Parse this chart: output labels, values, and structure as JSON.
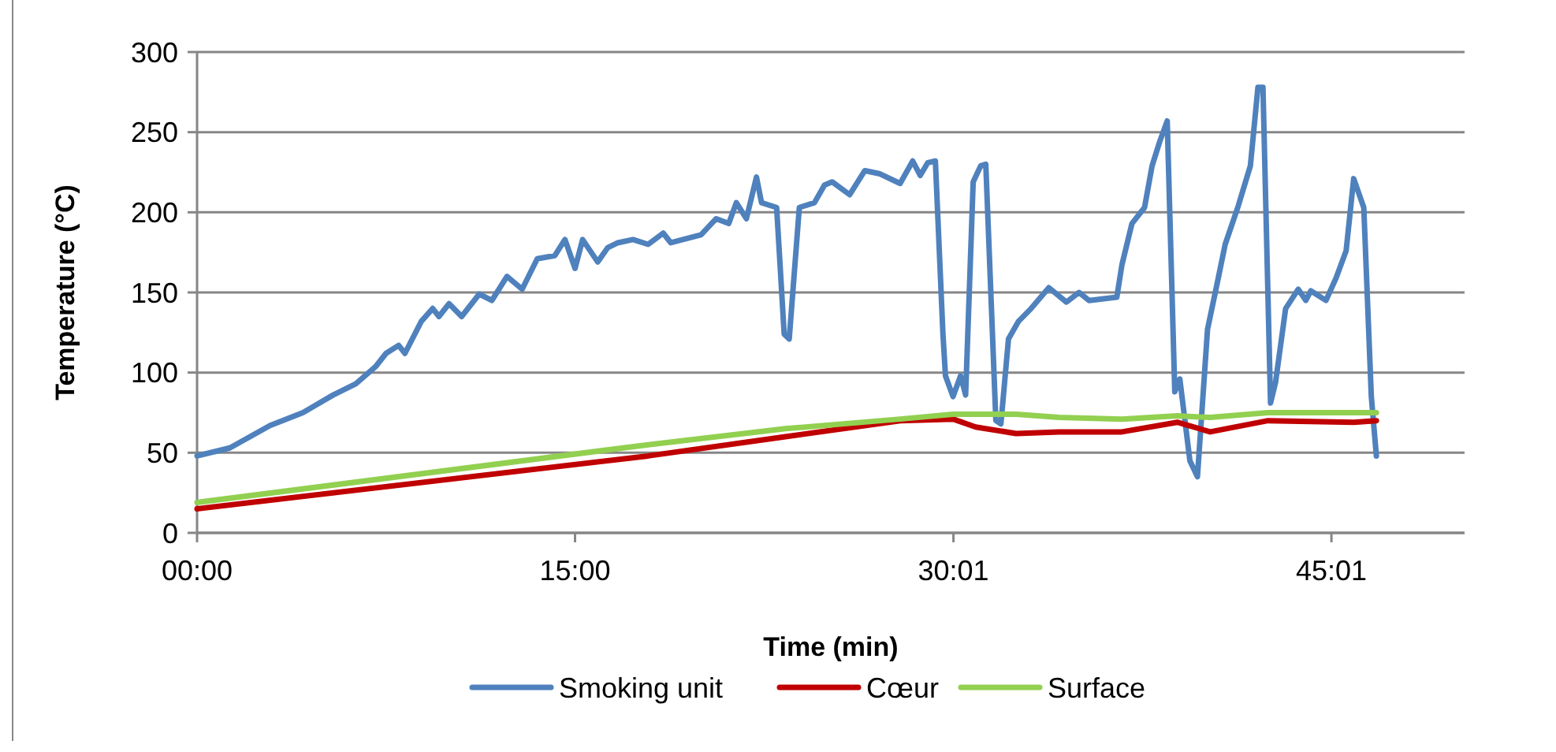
{
  "chart_data": {
    "type": "line",
    "xlabel": "Time (min)",
    "ylabel": "Temperature (°C)",
    "xlim": [
      0,
      50.3
    ],
    "xticks": [
      {
        "value": 0,
        "label": "00:00"
      },
      {
        "value": 15,
        "label": "15:00"
      },
      {
        "value": 30.0167,
        "label": "30:01"
      },
      {
        "value": 45.0167,
        "label": "45:01"
      }
    ],
    "ylim": [
      0,
      300
    ],
    "yticks": [
      0,
      50,
      100,
      150,
      200,
      250,
      300
    ],
    "grid": "y",
    "legend": "bottom",
    "line_style": "solid",
    "marker": "none",
    "series": [
      {
        "name": "Smoking unit",
        "color": "#4f81bd",
        "x": [
          0,
          1.3,
          2.9,
          4.2,
          5.4,
          6.3,
          7.1,
          7.5,
          8.0,
          8.25,
          8.9,
          9.35,
          9.6,
          10.0,
          10.5,
          11.2,
          11.7,
          12.3,
          12.9,
          13.5,
          14.2,
          14.6,
          15.0,
          15.3,
          15.9,
          16.3,
          16.7,
          17.3,
          17.9,
          18.5,
          18.8,
          20.0,
          20.6,
          21.1,
          21.4,
          21.8,
          22.2,
          22.4,
          23.0,
          23.3,
          23.5,
          23.9,
          24.5,
          24.9,
          25.2,
          25.9,
          26.5,
          27.1,
          27.9,
          28.4,
          28.7,
          29.0,
          29.3,
          29.6,
          29.7,
          30.0,
          30.3,
          30.5,
          30.8,
          31.1,
          31.3,
          31.7,
          31.9,
          32.2,
          32.6,
          33.1,
          33.8,
          34.5,
          35.0,
          35.4,
          36.5,
          36.7,
          37.1,
          37.6,
          37.9,
          38.2,
          38.5,
          38.8,
          39.0,
          39.4,
          39.7,
          40.1,
          40.5,
          40.8,
          41.3,
          41.8,
          42.1,
          42.3,
          42.6,
          42.8,
          43.2,
          43.7,
          44.0,
          44.2,
          44.8,
          45.2,
          45.6,
          45.9,
          46.3,
          46.6,
          46.8
        ],
        "values": [
          48,
          53,
          67,
          75,
          86,
          93,
          104,
          112,
          117,
          112,
          132,
          140,
          135,
          143,
          135,
          149,
          145,
          160,
          152,
          171,
          173,
          183,
          165,
          183,
          169,
          178,
          181,
          183,
          180,
          187,
          181,
          186,
          196,
          193,
          206,
          196,
          222,
          206,
          203,
          124,
          121,
          203,
          206,
          217,
          219,
          211,
          226,
          224,
          218,
          232,
          223,
          231,
          232,
          124,
          98,
          85,
          98,
          86,
          219,
          229,
          230,
          70,
          68,
          121,
          132,
          140,
          153,
          144,
          150,
          145,
          147,
          167,
          193,
          203,
          229,
          244,
          257,
          88,
          96,
          45,
          35,
          127,
          157,
          180,
          203,
          229,
          278,
          278,
          81,
          94,
          140,
          152,
          145,
          151,
          145,
          159,
          176,
          221,
          203,
          85,
          48
        ]
      },
      {
        "name": "Cœur",
        "color": "#c00000",
        "x": [
          0,
          17.9,
          23.35,
          27.9,
          30,
          30.9,
          32.5,
          34.2,
          36.7,
          38.9,
          40.2,
          42.5,
          45.9,
          46.8
        ],
        "values": [
          15,
          48,
          60,
          70,
          71,
          66,
          62,
          63,
          63,
          69,
          63,
          70,
          69,
          70
        ]
      },
      {
        "name": "Surface",
        "color": "#92d050",
        "x": [
          0,
          17.9,
          23.35,
          27.9,
          30,
          32.5,
          34.2,
          36.7,
          38.9,
          40.2,
          42.5,
          45.9,
          46.8
        ],
        "values": [
          19,
          55,
          65,
          71,
          74,
          74,
          72,
          71,
          73,
          72,
          75,
          75,
          75
        ]
      }
    ]
  }
}
